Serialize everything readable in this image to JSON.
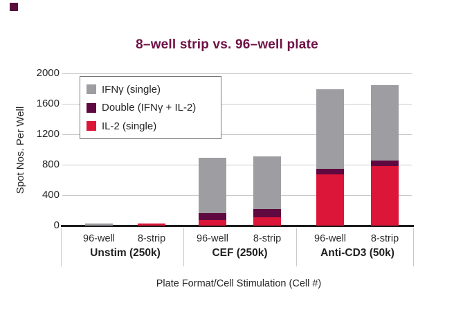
{
  "accents": {
    "corner_square_color": "#5a0f3b"
  },
  "chart_data": {
    "type": "stacked-bar",
    "title": "8–well strip vs. 96–well plate",
    "title_color": "#6e1144",
    "xlabel": "Plate Format/Cell Stimulation (Cell #)",
    "ylabel": "Spot Nos. Per Well",
    "ylim": [
      0,
      2000
    ],
    "yticks": [
      0,
      400,
      800,
      1200,
      1600,
      2000
    ],
    "grid": "horizontal-light-gray",
    "legend_position": "inside-top-left",
    "series": [
      {
        "key": "ifng",
        "name": "IFNγ (single)",
        "color": "#9e9ea2"
      },
      {
        "key": "double",
        "name": "Double (IFNγ + IL-2)",
        "color": "#5f0940"
      },
      {
        "key": "il2",
        "name": "IL-2 (single)",
        "color": "#dc1638"
      }
    ],
    "stack_order_bottom_to_top": [
      "il2",
      "double",
      "ifng"
    ],
    "groups": [
      {
        "label": "Unstim (250k)",
        "bars": [
          {
            "label": "96-well",
            "values": {
              "il2": 0,
              "double": 0,
              "ifng": 30
            },
            "total": 30
          },
          {
            "label": "8-strip",
            "values": {
              "il2": 30,
              "double": 0,
              "ifng": 0
            },
            "total": 30
          }
        ]
      },
      {
        "label": "CEF (250k)",
        "bars": [
          {
            "label": "96-well",
            "values": {
              "il2": 70,
              "double": 95,
              "ifng": 730
            },
            "total": 895
          },
          {
            "label": "8-strip",
            "values": {
              "il2": 105,
              "double": 115,
              "ifng": 690
            },
            "total": 910
          }
        ]
      },
      {
        "label": "Anti-CD3 (50k)",
        "bars": [
          {
            "label": "96-well",
            "values": {
              "il2": 675,
              "double": 70,
              "ifng": 1045
            },
            "total": 1790
          },
          {
            "label": "8-strip",
            "values": {
              "il2": 780,
              "double": 75,
              "ifng": 995
            },
            "total": 1850
          }
        ]
      }
    ]
  }
}
